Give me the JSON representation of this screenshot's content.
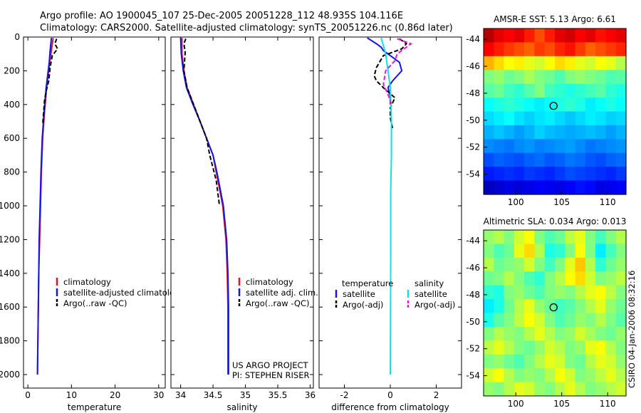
{
  "header": {
    "line1": "Argo profile: AO 1900045_107 25-Dec-2005 20051228_112 48.935S 104.116E",
    "line2": "Climatology: CARS2000. Satellite-adjusted climatology: synTS_20051226.nc (0.86d later)"
  },
  "colors": {
    "climatology": "#e8141c",
    "satellite": "#1414e6",
    "argo": "#000000",
    "satellite_salinity": "#14e0e0",
    "argo_salinity": "#e614e6"
  },
  "chart_data": [
    {
      "type": "line",
      "id": "temperature",
      "xlabel": "temperature",
      "ylabel": "",
      "xlim": [
        -1,
        31.5
      ],
      "ylim": [
        2080,
        0
      ],
      "xticks": [
        0,
        10,
        20,
        30
      ],
      "xtick_labels": [
        "0",
        "10",
        "20",
        "30"
      ],
      "yticks": [
        0,
        200,
        400,
        600,
        800,
        1000,
        1200,
        1400,
        1600,
        1800,
        2000
      ],
      "ytick_labels": [
        "0",
        "200",
        "400",
        "600",
        "800",
        "1000",
        "1200",
        "1400",
        "1600",
        "1800",
        "2000"
      ],
      "legend_labels": [
        "climatology",
        "satellite-adjusted climatology",
        "Argo(..raw -QC)"
      ],
      "series": [
        {
          "name": "climatology",
          "color_key": "climatology",
          "dash": "",
          "x": [
            5.8,
            5.4,
            5.0,
            4.3,
            3.8,
            3.4,
            3.1,
            2.9,
            2.7,
            2.5,
            2.4,
            2.3,
            2.2
          ],
          "y": [
            5,
            80,
            150,
            300,
            450,
            600,
            800,
            1000,
            1200,
            1400,
            1600,
            1800,
            2000
          ]
        },
        {
          "name": "satellite-adjusted climatology",
          "color_key": "satellite",
          "dash": "",
          "x": [
            5.4,
            5.1,
            4.9,
            4.2,
            3.7,
            3.3,
            3.0,
            2.8,
            2.6,
            2.5,
            2.4,
            2.3,
            2.2
          ],
          "y": [
            5,
            80,
            150,
            300,
            450,
            600,
            800,
            1000,
            1200,
            1400,
            1600,
            1800,
            2000
          ]
        },
        {
          "name": "Argo(..raw -QC)",
          "color_key": "argo",
          "dash": "6,3",
          "x": [
            6.6,
            6.2,
            6.8,
            5.6,
            5.1,
            4.8,
            4.2,
            3.8,
            3.6,
            3.4
          ],
          "y": [
            10,
            40,
            70,
            110,
            180,
            260,
            320,
            380,
            450,
            520
          ]
        }
      ]
    },
    {
      "type": "line",
      "id": "salinity",
      "xlabel": "salinity",
      "ylabel": "",
      "xlim": [
        33.85,
        36.05
      ],
      "ylim": [
        2080,
        0
      ],
      "xticks": [
        34,
        34.5,
        35,
        35.5,
        36
      ],
      "xtick_labels": [
        "34",
        "34.5",
        "35",
        "35.5",
        "36"
      ],
      "legend_labels": [
        "climatology",
        "satellite adj. clim.",
        "Argo(..raw -QC)"
      ],
      "annotations": [
        "US ARGO PROJECT",
        "PI: STEPHEN RISER"
      ],
      "series": [
        {
          "name": "climatology",
          "color_key": "climatology",
          "dash": "",
          "x": [
            34.02,
            34.02,
            34.05,
            34.1,
            34.2,
            34.3,
            34.4,
            34.5,
            34.55,
            34.6,
            34.65,
            34.7,
            34.72,
            34.73,
            34.73
          ],
          "y": [
            5,
            100,
            200,
            300,
            400,
            500,
            600,
            700,
            800,
            900,
            1000,
            1200,
            1400,
            1600,
            2000
          ]
        },
        {
          "name": "satellite adj. clim.",
          "color_key": "satellite",
          "dash": "",
          "x": [
            34.0,
            34.01,
            34.04,
            34.09,
            34.19,
            34.3,
            34.4,
            34.5,
            34.56,
            34.61,
            34.66,
            34.71,
            34.73,
            34.74,
            34.74
          ],
          "y": [
            5,
            100,
            200,
            300,
            400,
            500,
            600,
            700,
            800,
            900,
            1000,
            1200,
            1400,
            1600,
            2000
          ]
        },
        {
          "name": "Argo(..raw -QC)",
          "color_key": "argo",
          "dash": "6,3",
          "x": [
            34.08,
            34.05,
            34.07,
            34.05,
            34.1,
            34.15,
            34.3,
            34.4,
            34.45,
            34.55,
            34.6
          ],
          "y": [
            10,
            40,
            90,
            200,
            300,
            350,
            500,
            600,
            700,
            850,
            1000
          ]
        }
      ]
    },
    {
      "type": "line",
      "id": "difference",
      "xlabel": "difference from climatology",
      "ylabel": "",
      "xlim": [
        -3.1,
        3.1
      ],
      "ylim": [
        2080,
        0
      ],
      "xticks": [
        -2,
        0,
        2
      ],
      "xtick_labels": [
        "-2",
        "0",
        "2"
      ],
      "legend_headers": [
        "temperature",
        "salinity"
      ],
      "legend_labels": [
        "satellite",
        "Argo(-adj)",
        "satellite",
        "Argo(-adj)"
      ],
      "series": [
        {
          "name": "temperature satellite",
          "color_key": "satellite",
          "dash": "",
          "x": [
            -1.0,
            -0.6,
            -0.4,
            -0.3,
            0.1,
            0.4,
            0.5,
            0.1,
            -0.1,
            0.0,
            0.0
          ],
          "y": [
            5,
            40,
            60,
            80,
            120,
            150,
            200,
            260,
            300,
            350,
            400
          ]
        },
        {
          "name": "temperature Argo(-adj)",
          "color_key": "argo",
          "dash": "6,3",
          "x": [
            0.4,
            0.7,
            0.5,
            -0.3,
            -0.6,
            -0.7,
            -0.6,
            -0.3,
            0.2,
            0.0,
            0.0,
            0.1
          ],
          "y": [
            10,
            40,
            70,
            110,
            180,
            230,
            260,
            300,
            360,
            420,
            480,
            540
          ]
        },
        {
          "name": "salinity satellite",
          "color_key": "satellite_salinity",
          "dash": "",
          "x": [
            -0.4,
            -0.3,
            -0.2,
            -0.1,
            0.0,
            0.05,
            0.05,
            0.02,
            0.02,
            0.0
          ],
          "y": [
            5,
            50,
            100,
            200,
            300,
            500,
            700,
            900,
            1300,
            2000
          ]
        },
        {
          "name": "salinity Argo(-adj)",
          "color_key": "argo_salinity",
          "dash": "6,3",
          "x": [
            0.3,
            0.9,
            0.6,
            0.3,
            0.2,
            -0.2,
            -0.3,
            -0.1,
            0.05
          ],
          "y": [
            10,
            40,
            70,
            100,
            140,
            200,
            280,
            340,
            400
          ]
        }
      ]
    },
    {
      "type": "heatmap",
      "id": "sst",
      "title": "AMSR-E SST: 5.13 Argo: 6.61",
      "xlim": [
        96.5,
        112
      ],
      "ylim": [
        -55.5,
        -43.2
      ],
      "xticks": [
        100,
        105,
        110
      ],
      "xtick_labels": [
        "100",
        "105",
        "110"
      ],
      "yticks": [
        -44,
        -46,
        -48,
        -50,
        -52,
        -54
      ],
      "ytick_labels": [
        "-44",
        "-46",
        "-48",
        "-50",
        "-52",
        "-54"
      ],
      "rows": 12,
      "cols": 14,
      "z": [
        [
          0.95,
          0.9,
          0.88,
          0.9,
          0.85,
          0.8,
          0.85,
          0.9,
          0.92,
          0.88,
          0.9,
          0.86,
          0.88,
          0.9
        ],
        [
          0.88,
          0.85,
          0.82,
          0.8,
          0.78,
          0.82,
          0.8,
          0.84,
          0.86,
          0.82,
          0.78,
          0.8,
          0.82,
          0.84
        ],
        [
          0.7,
          0.66,
          0.62,
          0.64,
          0.6,
          0.58,
          0.62,
          0.66,
          0.64,
          0.6,
          0.58,
          0.62,
          0.6,
          0.55
        ],
        [
          0.5,
          0.52,
          0.48,
          0.5,
          0.54,
          0.5,
          0.48,
          0.45,
          0.5,
          0.52,
          0.5,
          0.48,
          0.45,
          0.46
        ],
        [
          0.46,
          0.48,
          0.44,
          0.42,
          0.46,
          0.5,
          0.44,
          0.42,
          0.4,
          0.42,
          0.44,
          0.46,
          0.42,
          0.4
        ],
        [
          0.38,
          0.4,
          0.42,
          0.4,
          0.38,
          0.36,
          0.38,
          0.4,
          0.42,
          0.4,
          0.36,
          0.38,
          0.4,
          0.38
        ],
        [
          0.34,
          0.36,
          0.38,
          0.35,
          0.33,
          0.35,
          0.36,
          0.34,
          0.32,
          0.34,
          0.36,
          0.35,
          0.33,
          0.34
        ],
        [
          0.3,
          0.32,
          0.3,
          0.28,
          0.3,
          0.33,
          0.31,
          0.3,
          0.29,
          0.3,
          0.31,
          0.3,
          0.28,
          0.3
        ],
        [
          0.26,
          0.25,
          0.24,
          0.26,
          0.27,
          0.25,
          0.26,
          0.27,
          0.28,
          0.26,
          0.24,
          0.25,
          0.26,
          0.27
        ],
        [
          0.2,
          0.22,
          0.21,
          0.2,
          0.22,
          0.23,
          0.21,
          0.22,
          0.24,
          0.23,
          0.21,
          0.2,
          0.22,
          0.23
        ],
        [
          0.15,
          0.16,
          0.17,
          0.16,
          0.18,
          0.17,
          0.16,
          0.18,
          0.2,
          0.19,
          0.18,
          0.17,
          0.16,
          0.18
        ],
        [
          0.06,
          0.08,
          0.1,
          0.09,
          0.1,
          0.12,
          0.11,
          0.1,
          0.12,
          0.14,
          0.13,
          0.1,
          0.11,
          0.12
        ]
      ],
      "marker": {
        "lon": 104.116,
        "lat": -48.935
      }
    },
    {
      "type": "heatmap",
      "id": "sla",
      "title": "Altimetric SLA: 0.034 Argo: 0.013",
      "xlim": [
        96.5,
        112
      ],
      "ylim": [
        -55.5,
        -43.2
      ],
      "xticks": [
        100,
        105,
        110
      ],
      "xtick_labels": [
        "100",
        "105",
        "110"
      ],
      "yticks": [
        -44,
        -46,
        -48,
        -50,
        -52,
        -54
      ],
      "ytick_labels": [
        "-44",
        "-46",
        "-48",
        "-50",
        "-52",
        "-54"
      ],
      "rows": 12,
      "cols": 14,
      "z": [
        [
          0.52,
          0.55,
          0.5,
          0.58,
          0.62,
          0.5,
          0.45,
          0.48,
          0.56,
          0.6,
          0.5,
          0.44,
          0.5,
          0.55
        ],
        [
          0.5,
          0.45,
          0.48,
          0.6,
          0.66,
          0.55,
          0.4,
          0.42,
          0.5,
          0.62,
          0.5,
          0.36,
          0.44,
          0.5
        ],
        [
          0.55,
          0.48,
          0.5,
          0.52,
          0.58,
          0.5,
          0.44,
          0.5,
          0.6,
          0.68,
          0.55,
          0.42,
          0.48,
          0.52
        ],
        [
          0.48,
          0.5,
          0.55,
          0.5,
          0.45,
          0.42,
          0.5,
          0.55,
          0.62,
          0.66,
          0.58,
          0.5,
          0.52,
          0.56
        ],
        [
          0.42,
          0.4,
          0.5,
          0.52,
          0.48,
          0.45,
          0.5,
          0.52,
          0.5,
          0.55,
          0.6,
          0.62,
          0.56,
          0.5
        ],
        [
          0.36,
          0.4,
          0.48,
          0.55,
          0.6,
          0.52,
          0.48,
          0.44,
          0.46,
          0.5,
          0.55,
          0.6,
          0.52,
          0.48
        ],
        [
          0.4,
          0.46,
          0.5,
          0.56,
          0.62,
          0.58,
          0.5,
          0.45,
          0.48,
          0.52,
          0.5,
          0.55,
          0.5,
          0.46
        ],
        [
          0.5,
          0.55,
          0.52,
          0.5,
          0.55,
          0.6,
          0.55,
          0.5,
          0.52,
          0.58,
          0.54,
          0.5,
          0.48,
          0.52
        ],
        [
          0.56,
          0.6,
          0.55,
          0.5,
          0.48,
          0.52,
          0.58,
          0.55,
          0.5,
          0.52,
          0.6,
          0.62,
          0.55,
          0.5
        ],
        [
          0.5,
          0.52,
          0.48,
          0.45,
          0.5,
          0.55,
          0.6,
          0.58,
          0.5,
          0.48,
          0.55,
          0.6,
          0.58,
          0.52
        ],
        [
          0.58,
          0.62,
          0.55,
          0.5,
          0.52,
          0.5,
          0.55,
          0.62,
          0.58,
          0.5,
          0.52,
          0.56,
          0.6,
          0.55
        ],
        [
          0.52,
          0.5,
          0.55,
          0.6,
          0.58,
          0.52,
          0.5,
          0.55,
          0.6,
          0.55,
          0.5,
          0.52,
          0.55,
          0.58
        ]
      ],
      "marker": {
        "lon": 104.116,
        "lat": -48.935
      }
    }
  ],
  "footer": {
    "timestamp": "CSIRO 04-Jan-2006 08:32:16"
  }
}
